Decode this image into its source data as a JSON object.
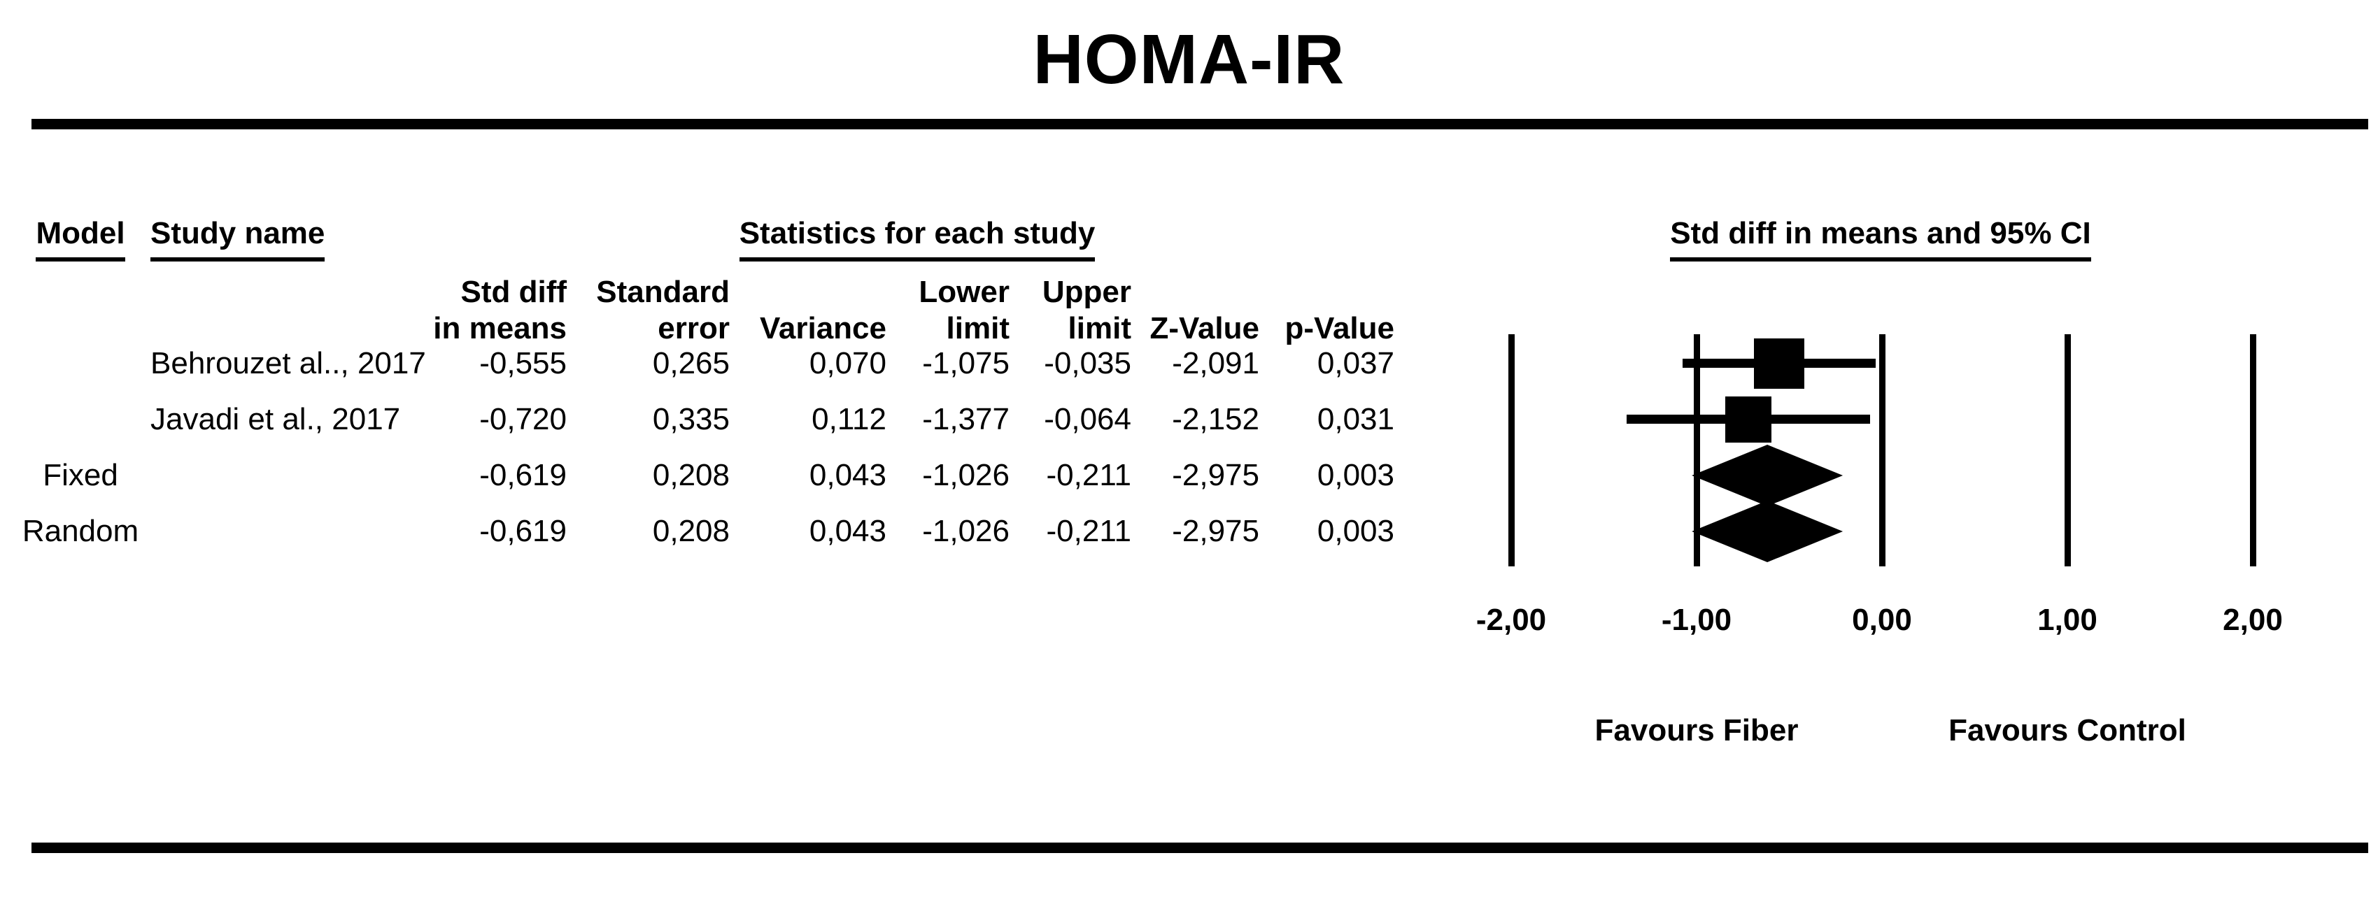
{
  "title": "HOMA-IR",
  "table": {
    "headers": {
      "model": "Model",
      "study": "Study name",
      "stats_group": "Statistics for each study",
      "plot_group": "Std diff in means and 95% CI"
    },
    "subheaders": {
      "std_diff_l1": "Std diff",
      "std_diff_l2": "in means",
      "std_err_l1": "Standard",
      "std_err_l2": "error",
      "variance": "Variance",
      "lower_l1": "Lower",
      "lower_l2": "limit",
      "upper_l1": "Upper",
      "upper_l2": "limit",
      "z": "Z-Value",
      "p": "p-Value"
    },
    "rows": [
      {
        "model": "",
        "study": "Behrouzet al.., 2017",
        "std_diff": "-0,555",
        "std_err": "0,265",
        "variance": "0,070",
        "lower": "-1,075",
        "upper": "-0,035",
        "z": "-2,091",
        "p": "0,037"
      },
      {
        "model": "",
        "study": "Javadi et al., 2017",
        "std_diff": "-0,720",
        "std_err": "0,335",
        "variance": "0,112",
        "lower": "-1,377",
        "upper": "-0,064",
        "z": "-2,152",
        "p": "0,031"
      },
      {
        "model": "Fixed",
        "study": "",
        "std_diff": "-0,619",
        "std_err": "0,208",
        "variance": "0,043",
        "lower": "-1,026",
        "upper": "-0,211",
        "z": "-2,975",
        "p": "0,003"
      },
      {
        "model": "Random",
        "study": "",
        "std_diff": "-0,619",
        "std_err": "0,208",
        "variance": "0,043",
        "lower": "-1,026",
        "upper": "-0,211",
        "z": "-2,975",
        "p": "0,003"
      }
    ]
  },
  "plot": {
    "axis_labels": [
      "-2,00",
      "-1,00",
      "0,00",
      "1,00",
      "2,00"
    ],
    "favours_left": "Favours Fiber",
    "favours_right": "Favours Control"
  },
  "colors": {
    "foreground": "#000000",
    "background": "#ffffff"
  },
  "chart_data": {
    "type": "forest",
    "title": "HOMA-IR",
    "effect_measure": "Std diff in means and 95% CI",
    "xlim": [
      -2,
      2
    ],
    "axis_ticks": [
      -2,
      -1,
      0,
      1,
      2
    ],
    "grid": true,
    "favours": {
      "left": "Favours Fiber",
      "right": "Favours Control"
    },
    "studies": [
      {
        "label": "Behrouzet al.., 2017",
        "model": "",
        "estimate": -0.555,
        "se": 0.265,
        "variance": 0.07,
        "ci_lower": -1.075,
        "ci_upper": -0.035,
        "z": -2.091,
        "p": 0.037,
        "marker": "square"
      },
      {
        "label": "Javadi et al., 2017",
        "model": "",
        "estimate": -0.72,
        "se": 0.335,
        "variance": 0.112,
        "ci_lower": -1.377,
        "ci_upper": -0.064,
        "z": -2.152,
        "p": 0.031,
        "marker": "square"
      },
      {
        "label": "Fixed",
        "model": "Fixed",
        "estimate": -0.619,
        "se": 0.208,
        "variance": 0.043,
        "ci_lower": -1.026,
        "ci_upper": -0.211,
        "z": -2.975,
        "p": 0.003,
        "marker": "diamond"
      },
      {
        "label": "Random",
        "model": "Random",
        "estimate": -0.619,
        "se": 0.208,
        "variance": 0.043,
        "ci_lower": -1.026,
        "ci_upper": -0.211,
        "z": -2.975,
        "p": 0.003,
        "marker": "diamond"
      }
    ]
  }
}
